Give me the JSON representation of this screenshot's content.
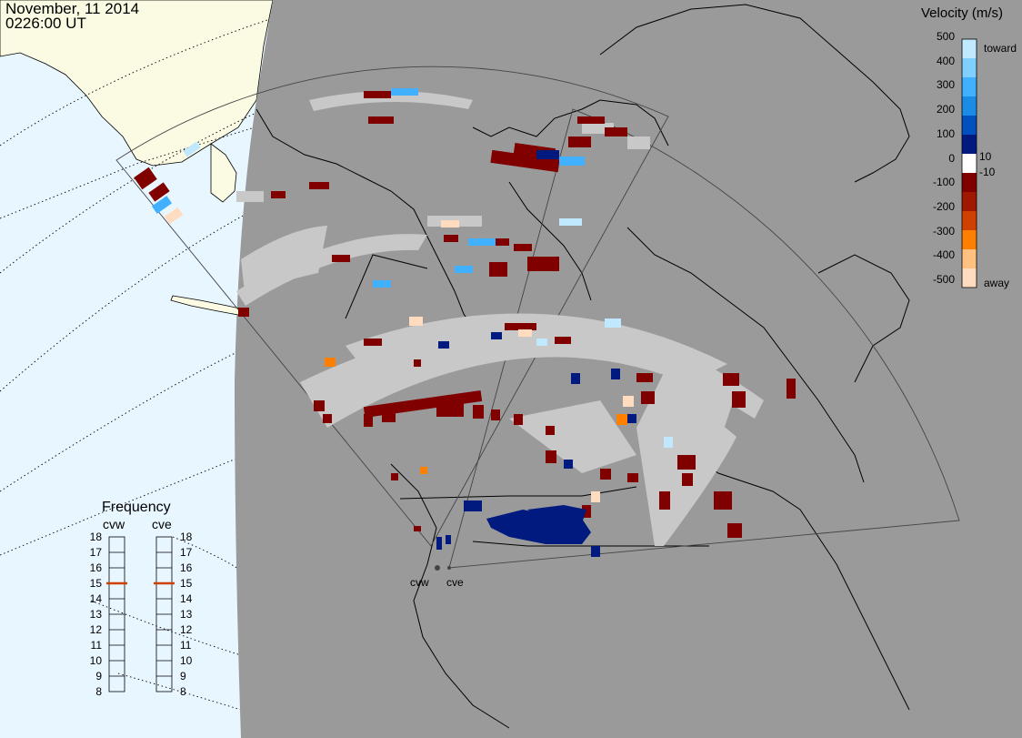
{
  "header": {
    "date": "November, 11 2014",
    "time": "0226:00 UT"
  },
  "radars": [
    {
      "code": "cvw",
      "site_label": "cvw"
    },
    {
      "code": "cve",
      "site_label": "cve"
    }
  ],
  "velocity_scale": {
    "title": "Velocity (m/s)",
    "tick_labels": [
      "500",
      "400",
      "300",
      "200",
      "100",
      "10",
      "0",
      "-10",
      "-100",
      "-200",
      "-300",
      "-400",
      "-500"
    ],
    "toward_label": "toward",
    "away_label": "away",
    "colors": [
      "#c0e8ff",
      "#80d0ff",
      "#40b0ff",
      "#1a8ce6",
      "#0050c0",
      "#001a80",
      "#ffffff",
      "#800000",
      "#a01800",
      "#d04000",
      "#ff8000",
      "#ffc080",
      "#ffdcc0"
    ]
  },
  "frequency": {
    "title": "Frequency",
    "columns": [
      {
        "name": "cvw",
        "value_mhz": 15
      },
      {
        "name": "cve",
        "value_mhz": 15
      }
    ],
    "scale_labels": [
      "18",
      "17",
      "16",
      "15",
      "14",
      "13",
      "12",
      "11",
      "10",
      "9",
      "8"
    ]
  },
  "colors": {
    "ocean": "#e8f6ff",
    "land_outside": "#fbfae2",
    "dark_region": "#9a9a9a",
    "ground_scatter": "#c8c8c8",
    "frequency_marker": "#d04000"
  }
}
